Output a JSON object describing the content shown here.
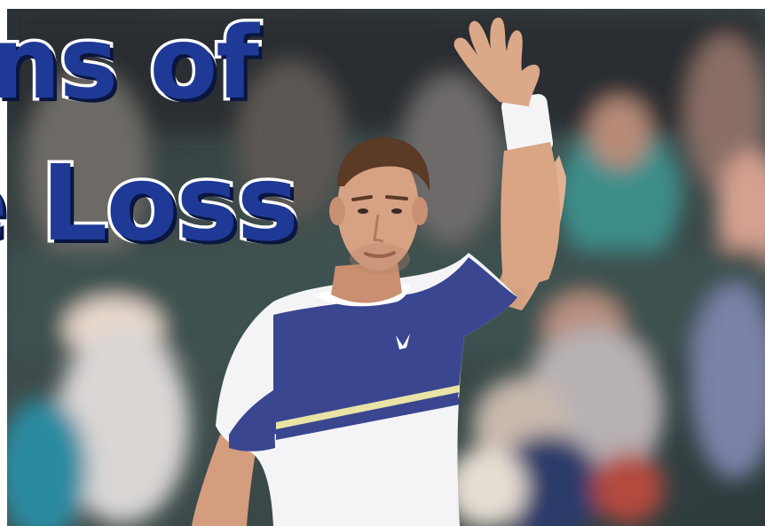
{
  "headline": {
    "line1": "gns of",
    "line2": "e Loss"
  },
  "colors": {
    "headline_fill": "#1f3a96",
    "headline_outline": "#ffffff",
    "shirt_blue": "#3a4690",
    "shirt_white": "#f4f4f6",
    "background_crowd": "#3f5654"
  }
}
